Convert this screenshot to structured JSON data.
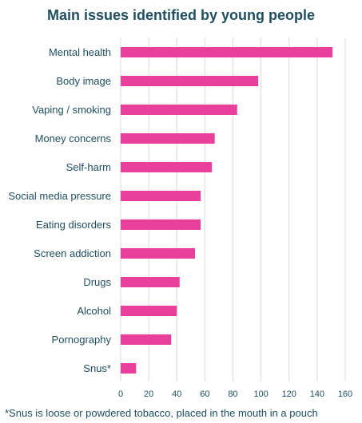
{
  "chart_data": {
    "type": "bar",
    "orientation": "horizontal",
    "title": "Main issues identified by young people",
    "categories": [
      "Mental health",
      "Body image",
      "Vaping / smoking",
      "Money concerns",
      "Self-harm",
      "Social media pressure",
      "Eating disorders",
      "Screen addiction",
      "Drugs",
      "Alcohol",
      "Pornography",
      "Snus*"
    ],
    "values": [
      151,
      98,
      83,
      67,
      65,
      57,
      57,
      53,
      42,
      40,
      36,
      11
    ],
    "xlim": [
      0,
      160
    ],
    "x_ticks": [
      "0",
      "20",
      "40",
      "60",
      "80",
      "100",
      "120",
      "140",
      "160"
    ],
    "xlabel": "",
    "ylabel": "",
    "grid": "vertical",
    "bar_color": "#e8409a",
    "footnote": "*Snus is loose or powdered tobacco, placed in the mouth in a pouch"
  }
}
